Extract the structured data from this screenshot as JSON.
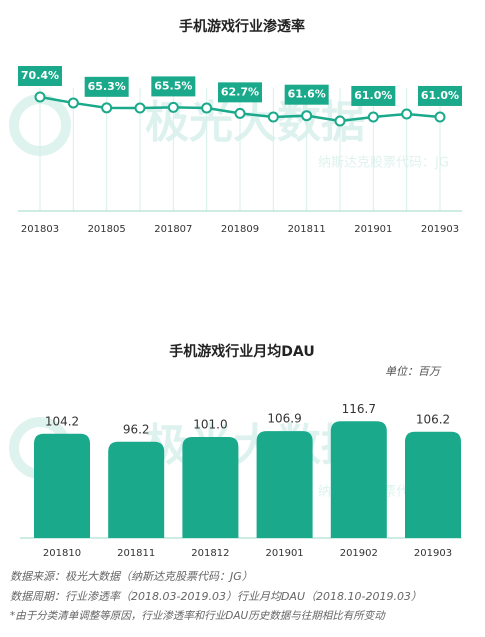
{
  "watermark": {
    "brand": "极光大数据",
    "code": "纳斯达克股票代码：JG"
  },
  "chart_data": [
    {
      "type": "line",
      "title": "手机游戏行业渗透率",
      "color": "#1aa98a",
      "categories": [
        "201803",
        null,
        "201805",
        null,
        "201807",
        null,
        "201809",
        null,
        "201811",
        null,
        "201901",
        null,
        "201903"
      ],
      "values": [
        70.4,
        67.6,
        65.3,
        65.2,
        65.5,
        65.2,
        62.7,
        61.0,
        61.6,
        59.1,
        61.0,
        62.4,
        61.0
      ],
      "value_labels": [
        "70.4%",
        null,
        "65.3%",
        null,
        "65.5%",
        null,
        "62.7%",
        null,
        "61.6%",
        null,
        "61.0%",
        null,
        "61.0%"
      ],
      "grid": true
    },
    {
      "type": "bar",
      "title": "手机游戏行业月均DAU",
      "unit": "单位：百万",
      "color": "#1aa98a",
      "categories": [
        "201810",
        "201811",
        "201812",
        "201901",
        "201902",
        "201903"
      ],
      "values": [
        104.2,
        96.2,
        101,
        106.9,
        116.7,
        106.2
      ],
      "value_labels": [
        "104.2",
        "96.2",
        "101.0",
        "106.9",
        "116.7",
        "106.2"
      ]
    }
  ],
  "notes": [
    "数据来源：极光大数据（纳斯达克股票代码：JG）",
    "数据周期：行业渗透率（2018.03-2019.03）行业月均DAU（2018.10-2019.03）",
    "*由于分类清单调整等原因，行业渗透率和行业DAU历史数据与往期相比有所变动"
  ]
}
